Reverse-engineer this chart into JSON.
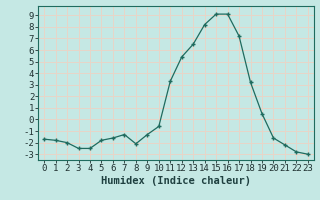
{
  "x": [
    0,
    1,
    2,
    3,
    4,
    5,
    6,
    7,
    8,
    9,
    10,
    11,
    12,
    13,
    14,
    15,
    16,
    17,
    18,
    19,
    20,
    21,
    22,
    23
  ],
  "y": [
    -1.7,
    -1.8,
    -2.0,
    -2.5,
    -2.5,
    -1.8,
    -1.6,
    -1.3,
    -2.1,
    -1.3,
    -0.6,
    3.3,
    5.4,
    6.5,
    8.2,
    9.1,
    9.1,
    7.2,
    3.2,
    0.5,
    -1.6,
    -2.2,
    -2.8,
    -3.0
  ],
  "xlabel": "Humidex (Indice chaleur)",
  "bg_color": "#c5e8e4",
  "grid_color": "#e8d5c8",
  "line_color": "#1f6b5e",
  "marker_color": "#1f6b5e",
  "ylim": [
    -3.5,
    9.8
  ],
  "xlim": [
    -0.5,
    23.5
  ],
  "yticks": [
    -3,
    -2,
    -1,
    0,
    1,
    2,
    3,
    4,
    5,
    6,
    7,
    8,
    9
  ],
  "xticks": [
    0,
    1,
    2,
    3,
    4,
    5,
    6,
    7,
    8,
    9,
    10,
    11,
    12,
    13,
    14,
    15,
    16,
    17,
    18,
    19,
    20,
    21,
    22,
    23
  ],
  "xlabel_fontsize": 7.5,
  "tick_fontsize": 6.5
}
